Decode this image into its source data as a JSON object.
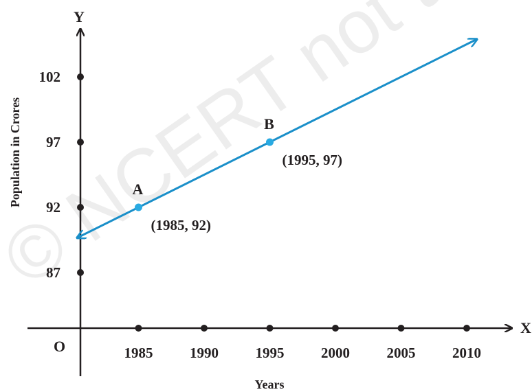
{
  "watermark": "© NCERT not to be republished",
  "chart_data": {
    "type": "line",
    "xlabel": "Years",
    "ylabel": "Population in Crores",
    "x_axis_name": "X",
    "y_axis_name": "Y",
    "origin_label": "O",
    "x_ticks": [
      1985,
      1990,
      1995,
      2000,
      2005,
      2010
    ],
    "x_tick_labels": [
      "1985",
      "1990",
      "1995",
      "2000",
      "2005",
      "2010"
    ],
    "y_ticks": [
      87,
      92,
      97,
      102
    ],
    "y_tick_labels": [
      "87",
      "92",
      "97",
      "102"
    ],
    "points": [
      {
        "name": "A",
        "x": 1985,
        "y": 92,
        "coord_label": "(1985, 92)"
      },
      {
        "name": "B",
        "x": 1995,
        "y": 97,
        "coord_label": "(1995, 97)"
      }
    ],
    "line_color": "#1a8fc9",
    "point_color": "#29aae2",
    "axis_color": "#231f20",
    "grid": false
  }
}
